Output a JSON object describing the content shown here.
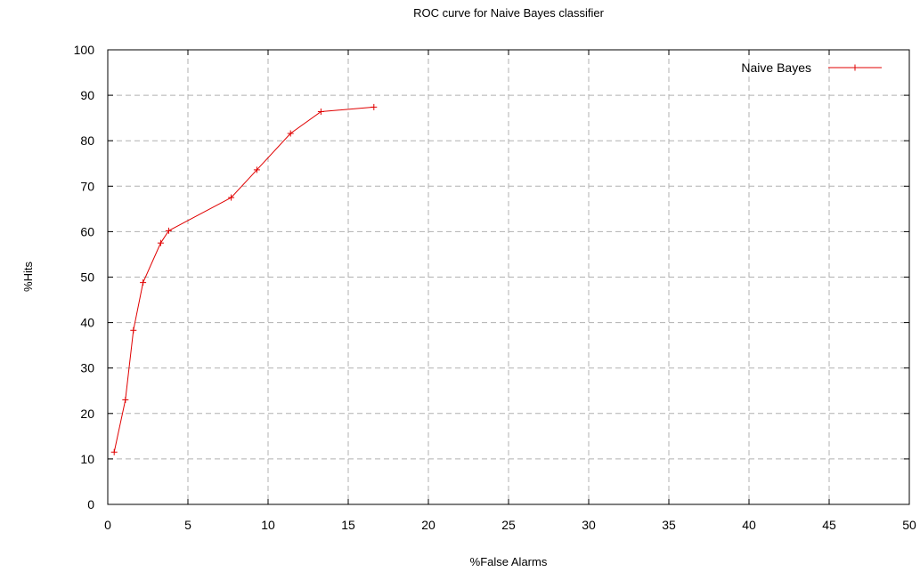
{
  "chart_data": {
    "type": "line",
    "title": "ROC curve for Naive Bayes classifier",
    "xlabel": "%False Alarms",
    "ylabel": "%Hits",
    "xlim": [
      0,
      50
    ],
    "ylim": [
      0,
      100
    ],
    "xticks": [
      0,
      5,
      10,
      15,
      20,
      25,
      30,
      35,
      40,
      45,
      50
    ],
    "yticks": [
      0,
      10,
      20,
      30,
      40,
      50,
      60,
      70,
      80,
      90,
      100
    ],
    "grid": true,
    "legend_position": "top-right",
    "series": [
      {
        "name": "Naive Bayes",
        "color": "#e00000",
        "marker": "plus",
        "x": [
          0.4,
          1.1,
          1.6,
          2.2,
          3.3,
          3.8,
          7.7,
          9.3,
          11.4,
          13.3,
          16.6
        ],
        "y": [
          11.5,
          23.0,
          38.3,
          48.8,
          57.5,
          60.2,
          67.5,
          73.6,
          81.6,
          86.4,
          87.4
        ]
      }
    ]
  }
}
